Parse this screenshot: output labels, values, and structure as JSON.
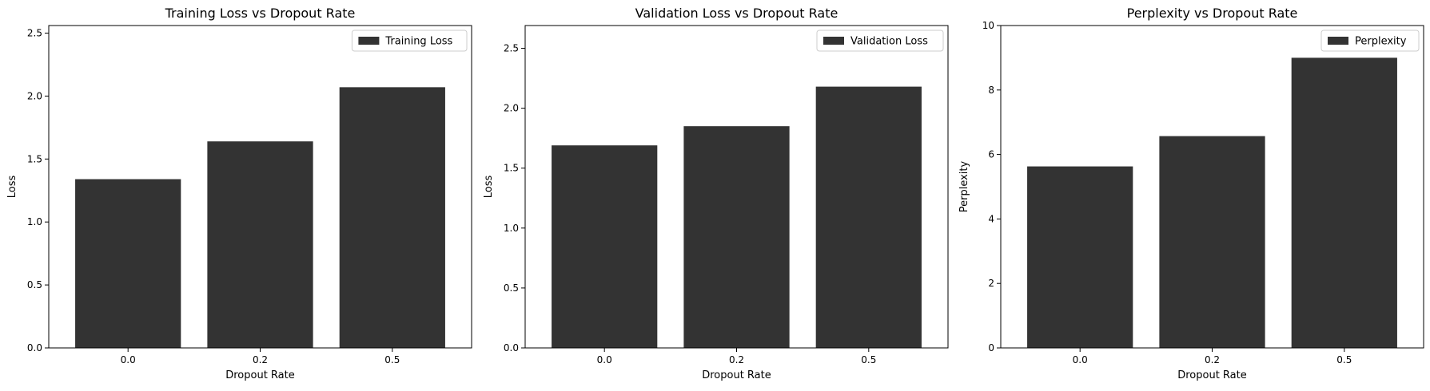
{
  "colors": {
    "bar": "#333333",
    "axis": "#000000",
    "legend_border": "#cccccc",
    "background": "#ffffff"
  },
  "chart_data": [
    {
      "type": "bar",
      "title": "Training Loss vs Dropout Rate",
      "xlabel": "Dropout Rate",
      "ylabel": "Loss",
      "categories": [
        "0.0",
        "0.2",
        "0.5"
      ],
      "series": [
        {
          "name": "Training Loss",
          "values": [
            1.34,
            1.64,
            2.07
          ]
        }
      ],
      "ylim": [
        0,
        2.56
      ],
      "yticks": [
        0.0,
        0.5,
        1.0,
        1.5,
        2.0,
        2.5
      ],
      "ytick_labels": [
        "0.0",
        "0.5",
        "1.0",
        "1.5",
        "2.0",
        "2.5"
      ],
      "legend": "top-right",
      "grid": false
    },
    {
      "type": "bar",
      "title": "Validation Loss vs Dropout Rate",
      "xlabel": "Dropout Rate",
      "ylabel": "Loss",
      "categories": [
        "0.0",
        "0.2",
        "0.5"
      ],
      "series": [
        {
          "name": "Validation Loss",
          "values": [
            1.69,
            1.85,
            2.18
          ]
        }
      ],
      "ylim": [
        0,
        2.69
      ],
      "yticks": [
        0.0,
        0.5,
        1.0,
        1.5,
        2.0,
        2.5
      ],
      "ytick_labels": [
        "0.0",
        "0.5",
        "1.0",
        "1.5",
        "2.0",
        "2.5"
      ],
      "legend": "top-right",
      "grid": false
    },
    {
      "type": "bar",
      "title": "Perplexity vs Dropout Rate",
      "xlabel": "Dropout Rate",
      "ylabel": "Perplexity",
      "categories": [
        "0.0",
        "0.2",
        "0.5"
      ],
      "series": [
        {
          "name": "Perplexity",
          "values": [
            5.63,
            6.57,
            9.0
          ]
        }
      ],
      "ylim": [
        0,
        10
      ],
      "yticks": [
        0,
        2,
        4,
        6,
        8,
        10
      ],
      "ytick_labels": [
        "0",
        "2",
        "4",
        "6",
        "8",
        "10"
      ],
      "legend": "top-right",
      "grid": false
    }
  ]
}
